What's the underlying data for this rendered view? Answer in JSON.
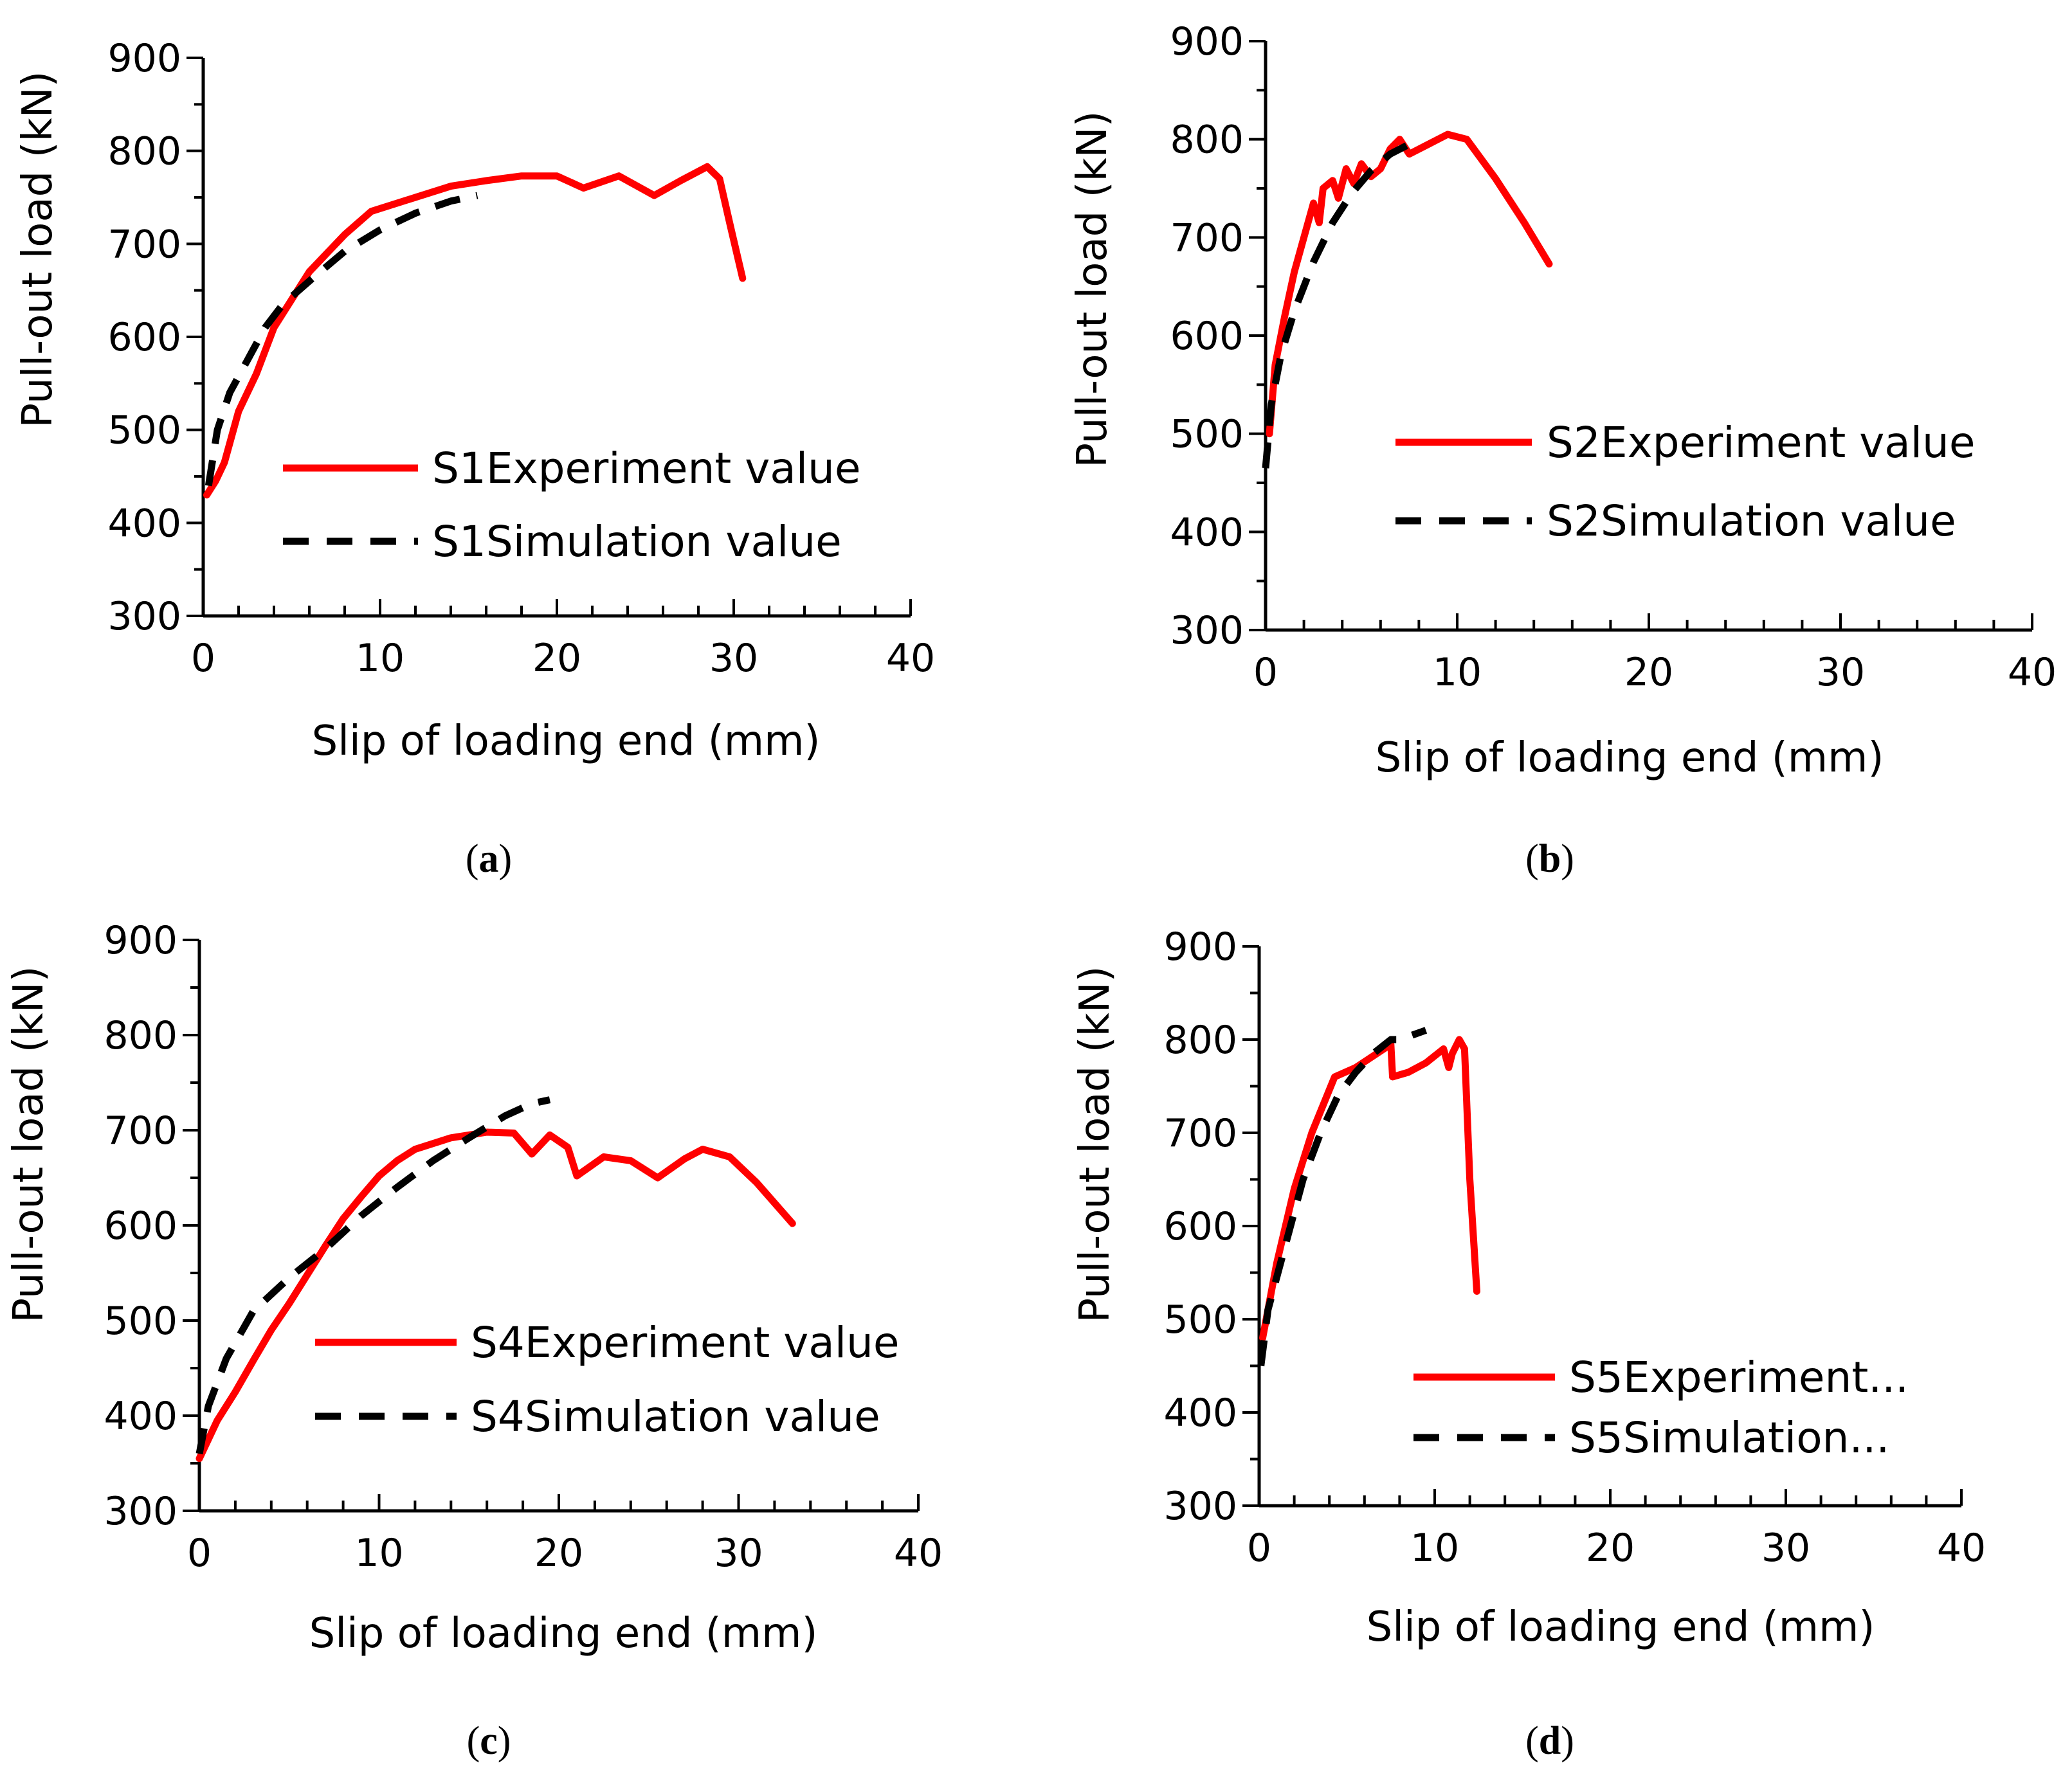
{
  "chart_data": [
    {
      "type": "line",
      "panel": "a",
      "caption": {
        "open": "(",
        "letter": "a",
        "close": ")"
      },
      "xlabel": "Slip of loading end (mm)",
      "ylabel": "Pull-out load (kN)",
      "xlim": [
        0,
        40
      ],
      "ylim": [
        300,
        900
      ],
      "xticks": [
        0,
        10,
        20,
        30,
        40
      ],
      "yticks": [
        300,
        400,
        500,
        600,
        700,
        800,
        900
      ],
      "series": [
        {
          "name": "S1Experiment value",
          "color": "#ff0000",
          "style": "solid",
          "points": [
            [
              0.2,
              430
            ],
            [
              0.7,
              445
            ],
            [
              1.2,
              465
            ],
            [
              2,
              520
            ],
            [
              3,
              560
            ],
            [
              4,
              610
            ],
            [
              5,
              640
            ],
            [
              6,
              670
            ],
            [
              8,
              710
            ],
            [
              9.5,
              735
            ],
            [
              12,
              750
            ],
            [
              14,
              762
            ],
            [
              16,
              768
            ],
            [
              18,
              773
            ],
            [
              20,
              773
            ],
            [
              21.5,
              760
            ],
            [
              23.5,
              773
            ],
            [
              25.5,
              752
            ],
            [
              27,
              768
            ],
            [
              28.5,
              783
            ],
            [
              29.2,
              770
            ],
            [
              29.8,
              720
            ],
            [
              30.5,
              663
            ]
          ]
        },
        {
          "name": "S1Simulation value",
          "color": "#000000",
          "style": "dashed",
          "points": [
            [
              0.3,
              440
            ],
            [
              0.8,
              500
            ],
            [
              1.5,
              540
            ],
            [
              2.5,
              575
            ],
            [
              3.5,
              610
            ],
            [
              4.5,
              635
            ],
            [
              6,
              660
            ],
            [
              8,
              692
            ],
            [
              10,
              715
            ],
            [
              12,
              733
            ],
            [
              14,
              746
            ],
            [
              15.5,
              752
            ]
          ]
        }
      ]
    },
    {
      "type": "line",
      "panel": "b",
      "caption": {
        "open": "(",
        "letter": "b",
        "close": ")"
      },
      "xlabel": "Slip of loading end (mm)",
      "ylabel": "Pull-out load (kN)",
      "xlim": [
        0,
        40
      ],
      "ylim": [
        300,
        900
      ],
      "xticks": [
        0,
        10,
        20,
        30,
        40
      ],
      "yticks": [
        300,
        400,
        500,
        600,
        700,
        800,
        900
      ],
      "series": [
        {
          "name": "S2Experiment value",
          "color": "#ff0000",
          "style": "solid",
          "points": [
            [
              0.2,
              500
            ],
            [
              0.5,
              570
            ],
            [
              1,
              620
            ],
            [
              1.5,
              665
            ],
            [
              2,
              700
            ],
            [
              2.5,
              735
            ],
            [
              2.8,
              715
            ],
            [
              3,
              750
            ],
            [
              3.5,
              758
            ],
            [
              3.8,
              740
            ],
            [
              4.2,
              770
            ],
            [
              4.6,
              755
            ],
            [
              5,
              775
            ],
            [
              5.5,
              762
            ],
            [
              6,
              770
            ],
            [
              6.5,
              790
            ],
            [
              7,
              800
            ],
            [
              7.5,
              785
            ],
            [
              8.5,
              795
            ],
            [
              9.5,
              805
            ],
            [
              10.5,
              800
            ],
            [
              12,
              760
            ],
            [
              13.5,
              715
            ],
            [
              14.8,
              673
            ]
          ]
        },
        {
          "name": "S2Simulation value",
          "color": "#000000",
          "style": "dashed",
          "points": [
            [
              0,
              465
            ],
            [
              0.3,
              530
            ],
            [
              0.8,
              580
            ],
            [
              1.5,
              625
            ],
            [
              2.5,
              675
            ],
            [
              3.5,
              715
            ],
            [
              4.5,
              745
            ],
            [
              5.5,
              768
            ],
            [
              6.5,
              785
            ],
            [
              7.5,
              795
            ]
          ]
        }
      ]
    },
    {
      "type": "line",
      "panel": "c",
      "caption": {
        "open": "(",
        "letter": "c",
        "close": ")"
      },
      "xlabel": "Slip of loading end (mm)",
      "ylabel": "Pull-out load (kN)",
      "xlim": [
        0,
        40
      ],
      "ylim": [
        300,
        900
      ],
      "xticks": [
        0,
        10,
        20,
        30,
        40
      ],
      "yticks": [
        300,
        400,
        500,
        600,
        700,
        800,
        900
      ],
      "series": [
        {
          "name": "S4Experiment value",
          "color": "#ff0000",
          "style": "solid",
          "points": [
            [
              0,
              355
            ],
            [
              1,
              395
            ],
            [
              2,
              425
            ],
            [
              3,
              458
            ],
            [
              4,
              490
            ],
            [
              5,
              518
            ],
            [
              6,
              548
            ],
            [
              7,
              578
            ],
            [
              8,
              607
            ],
            [
              9,
              630
            ],
            [
              10,
              652
            ],
            [
              11,
              668
            ],
            [
              12,
              680
            ],
            [
              14,
              692
            ],
            [
              16,
              698
            ],
            [
              17.5,
              697
            ],
            [
              18.5,
              675
            ],
            [
              19.5,
              695
            ],
            [
              20.5,
              682
            ],
            [
              21,
              652
            ],
            [
              22.5,
              672
            ],
            [
              24,
              668
            ],
            [
              25.5,
              650
            ],
            [
              27,
              670
            ],
            [
              28,
              680
            ],
            [
              29.5,
              672
            ],
            [
              31,
              645
            ],
            [
              33,
              602
            ]
          ]
        },
        {
          "name": "S4Simulation value",
          "color": "#000000",
          "style": "dashed",
          "points": [
            [
              0,
              360
            ],
            [
              0.5,
              410
            ],
            [
              1.5,
              460
            ],
            [
              3,
              510
            ],
            [
              5,
              545
            ],
            [
              7,
              575
            ],
            [
              9,
              610
            ],
            [
              11,
              640
            ],
            [
              13,
              668
            ],
            [
              15,
              692
            ],
            [
              17,
              715
            ],
            [
              18.5,
              728
            ],
            [
              19.5,
              732
            ]
          ]
        }
      ]
    },
    {
      "type": "line",
      "panel": "d",
      "caption": {
        "open": "(",
        "letter": "d",
        "close": ")"
      },
      "xlabel": "Slip of loading end (mm)",
      "ylabel": "Pull-out load (kN)",
      "xlim": [
        0,
        40
      ],
      "ylim": [
        300,
        900
      ],
      "xticks": [
        0,
        10,
        20,
        30,
        40
      ],
      "yticks": [
        300,
        400,
        500,
        600,
        700,
        800,
        900
      ],
      "series": [
        {
          "name": "S5Experiment...",
          "color": "#ff0000",
          "style": "solid",
          "points": [
            [
              0.2,
              480
            ],
            [
              1,
              560
            ],
            [
              2,
              640
            ],
            [
              3,
              700
            ],
            [
              4.3,
              760
            ],
            [
              5.5,
              770
            ],
            [
              7.5,
              795
            ],
            [
              7.6,
              760
            ],
            [
              8.5,
              765
            ],
            [
              9.5,
              775
            ],
            [
              10.5,
              790
            ],
            [
              10.8,
              770
            ],
            [
              11,
              785
            ],
            [
              11.4,
              800
            ],
            [
              11.7,
              790
            ],
            [
              12,
              650
            ],
            [
              12.4,
              530
            ]
          ]
        },
        {
          "name": "S5Simulation...",
          "color": "#000000",
          "style": "dashed",
          "points": [
            [
              0.1,
              450
            ],
            [
              0.5,
              510
            ],
            [
              1.5,
              580
            ],
            [
              2.5,
              650
            ],
            [
              3.5,
              700
            ],
            [
              4.5,
              740
            ],
            [
              5.5,
              765
            ],
            [
              6.5,
              785
            ],
            [
              7.5,
              800
            ],
            [
              8,
              800
            ],
            [
              9.5,
              810
            ]
          ]
        }
      ]
    }
  ]
}
